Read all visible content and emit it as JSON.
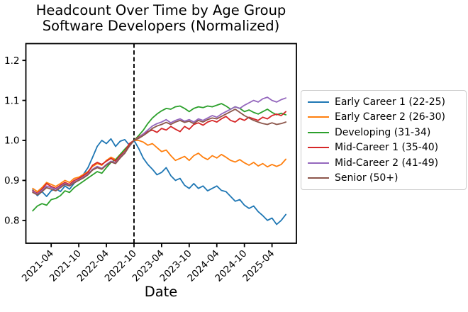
{
  "title": {
    "line1": "Headcount Over Time by Age Group",
    "line2": "Software Developers (Normalized)"
  },
  "chart_data": {
    "type": "line",
    "title": "Headcount Over Time by Age Group — Software Developers (Normalized)",
    "xlabel": "Date",
    "ylabel": "",
    "grid": false,
    "legend_position": "right-outside",
    "ylim": [
      0.743,
      1.242
    ],
    "xlim_index": [
      -1.5,
      57.3
    ],
    "y_ticks": [
      0.8,
      0.9,
      1.0,
      1.1,
      1.2
    ],
    "x_ticks": [
      {
        "index": 4,
        "label": "2021-04"
      },
      {
        "index": 10,
        "label": "2021-10"
      },
      {
        "index": 16,
        "label": "2022-04"
      },
      {
        "index": 22,
        "label": "2022-10"
      },
      {
        "index": 28,
        "label": "2023-04"
      },
      {
        "index": 34,
        "label": "2023-10"
      },
      {
        "index": 40,
        "label": "2024-04"
      },
      {
        "index": 46,
        "label": "2024-10"
      },
      {
        "index": 52,
        "label": "2025-04"
      }
    ],
    "vline": {
      "index": 22,
      "label": "2022-10",
      "style": "dashed",
      "color": "#000000"
    },
    "x": [
      "2020-12",
      "2021-01",
      "2021-02",
      "2021-03",
      "2021-04",
      "2021-05",
      "2021-06",
      "2021-07",
      "2021-08",
      "2021-09",
      "2021-10",
      "2021-11",
      "2021-12",
      "2022-01",
      "2022-02",
      "2022-03",
      "2022-04",
      "2022-05",
      "2022-06",
      "2022-07",
      "2022-08",
      "2022-09",
      "2022-10",
      "2022-11",
      "2022-12",
      "2023-01",
      "2023-02",
      "2023-03",
      "2023-04",
      "2023-05",
      "2023-06",
      "2023-07",
      "2023-08",
      "2023-09",
      "2023-10",
      "2023-11",
      "2023-12",
      "2024-01",
      "2024-02",
      "2024-03",
      "2024-04",
      "2024-05",
      "2024-06",
      "2024-07",
      "2024-08",
      "2024-09",
      "2024-10",
      "2024-11",
      "2024-12",
      "2025-01",
      "2025-02",
      "2025-03",
      "2025-04",
      "2025-05",
      "2025-06",
      "2025-07"
    ],
    "series": [
      {
        "name": "Early Career 1 (22-25)",
        "color": "#1f77b4",
        "values": [
          0.876,
          0.862,
          0.872,
          0.86,
          0.874,
          0.88,
          0.872,
          0.886,
          0.878,
          0.893,
          0.902,
          0.915,
          0.932,
          0.958,
          0.985,
          1.0,
          0.992,
          1.004,
          0.985,
          0.998,
          1.002,
          0.988,
          1.0,
          0.98,
          0.956,
          0.94,
          0.928,
          0.914,
          0.92,
          0.932,
          0.912,
          0.9,
          0.905,
          0.888,
          0.88,
          0.892,
          0.88,
          0.886,
          0.874,
          0.88,
          0.886,
          0.875,
          0.872,
          0.86,
          0.848,
          0.852,
          0.838,
          0.83,
          0.836,
          0.822,
          0.812,
          0.8,
          0.806,
          0.79,
          0.8,
          0.815
        ]
      },
      {
        "name": "Early Career 2 (26-30)",
        "color": "#ff7f0e",
        "values": [
          0.88,
          0.872,
          0.882,
          0.895,
          0.89,
          0.885,
          0.892,
          0.9,
          0.895,
          0.905,
          0.908,
          0.915,
          0.922,
          0.935,
          0.942,
          0.938,
          0.95,
          0.958,
          0.952,
          0.965,
          0.975,
          0.99,
          1.0,
          1.0,
          0.996,
          0.988,
          0.992,
          0.982,
          0.972,
          0.976,
          0.962,
          0.95,
          0.955,
          0.96,
          0.95,
          0.962,
          0.968,
          0.958,
          0.952,
          0.962,
          0.956,
          0.965,
          0.958,
          0.95,
          0.946,
          0.952,
          0.944,
          0.938,
          0.945,
          0.936,
          0.942,
          0.934,
          0.94,
          0.935,
          0.94,
          0.953
        ]
      },
      {
        "name": "Developing (31-34)",
        "color": "#2ca02c",
        "values": [
          0.824,
          0.836,
          0.842,
          0.838,
          0.852,
          0.855,
          0.862,
          0.874,
          0.87,
          0.882,
          0.89,
          0.898,
          0.906,
          0.914,
          0.922,
          0.918,
          0.932,
          0.945,
          0.952,
          0.965,
          0.978,
          0.99,
          1.0,
          1.012,
          1.025,
          1.042,
          1.056,
          1.066,
          1.074,
          1.08,
          1.078,
          1.084,
          1.086,
          1.08,
          1.072,
          1.08,
          1.084,
          1.082,
          1.086,
          1.084,
          1.088,
          1.092,
          1.086,
          1.078,
          1.084,
          1.08,
          1.072,
          1.076,
          1.07,
          1.066,
          1.072,
          1.078,
          1.07,
          1.064,
          1.068,
          1.064
        ]
      },
      {
        "name": "Mid-Career 1 (35-40)",
        "color": "#d62728",
        "values": [
          0.874,
          0.868,
          0.878,
          0.892,
          0.885,
          0.88,
          0.888,
          0.895,
          0.89,
          0.9,
          0.905,
          0.912,
          0.92,
          0.938,
          0.945,
          0.94,
          0.948,
          0.955,
          0.948,
          0.962,
          0.972,
          0.992,
          1.0,
          1.008,
          1.016,
          1.022,
          1.026,
          1.02,
          1.03,
          1.026,
          1.035,
          1.028,
          1.022,
          1.035,
          1.028,
          1.04,
          1.044,
          1.038,
          1.046,
          1.05,
          1.046,
          1.054,
          1.06,
          1.05,
          1.046,
          1.055,
          1.05,
          1.058,
          1.054,
          1.05,
          1.058,
          1.054,
          1.062,
          1.066,
          1.062,
          1.072
        ]
      },
      {
        "name": "Mid-Career 2 (41-49)",
        "color": "#9467bd",
        "values": [
          0.872,
          0.866,
          0.875,
          0.886,
          0.882,
          0.878,
          0.885,
          0.892,
          0.888,
          0.896,
          0.902,
          0.908,
          0.916,
          0.928,
          0.935,
          0.93,
          0.94,
          0.948,
          0.944,
          0.958,
          0.97,
          0.985,
          1.0,
          1.006,
          1.016,
          1.026,
          1.036,
          1.042,
          1.046,
          1.052,
          1.044,
          1.05,
          1.054,
          1.048,
          1.052,
          1.046,
          1.054,
          1.05,
          1.056,
          1.062,
          1.058,
          1.066,
          1.072,
          1.078,
          1.084,
          1.08,
          1.088,
          1.094,
          1.1,
          1.096,
          1.104,
          1.108,
          1.1,
          1.096,
          1.102,
          1.106
        ]
      },
      {
        "name": "Senior (50+)",
        "color": "#8c564b",
        "values": [
          0.87,
          0.864,
          0.872,
          0.882,
          0.878,
          0.874,
          0.882,
          0.89,
          0.886,
          0.894,
          0.9,
          0.906,
          0.914,
          0.926,
          0.932,
          0.928,
          0.938,
          0.946,
          0.942,
          0.956,
          0.968,
          0.986,
          1.0,
          1.005,
          1.012,
          1.02,
          1.03,
          1.036,
          1.04,
          1.045,
          1.04,
          1.046,
          1.05,
          1.045,
          1.048,
          1.042,
          1.05,
          1.046,
          1.052,
          1.056,
          1.054,
          1.06,
          1.066,
          1.072,
          1.078,
          1.07,
          1.062,
          1.056,
          1.05,
          1.046,
          1.042,
          1.04,
          1.044,
          1.04,
          1.042,
          1.046
        ]
      }
    ]
  }
}
